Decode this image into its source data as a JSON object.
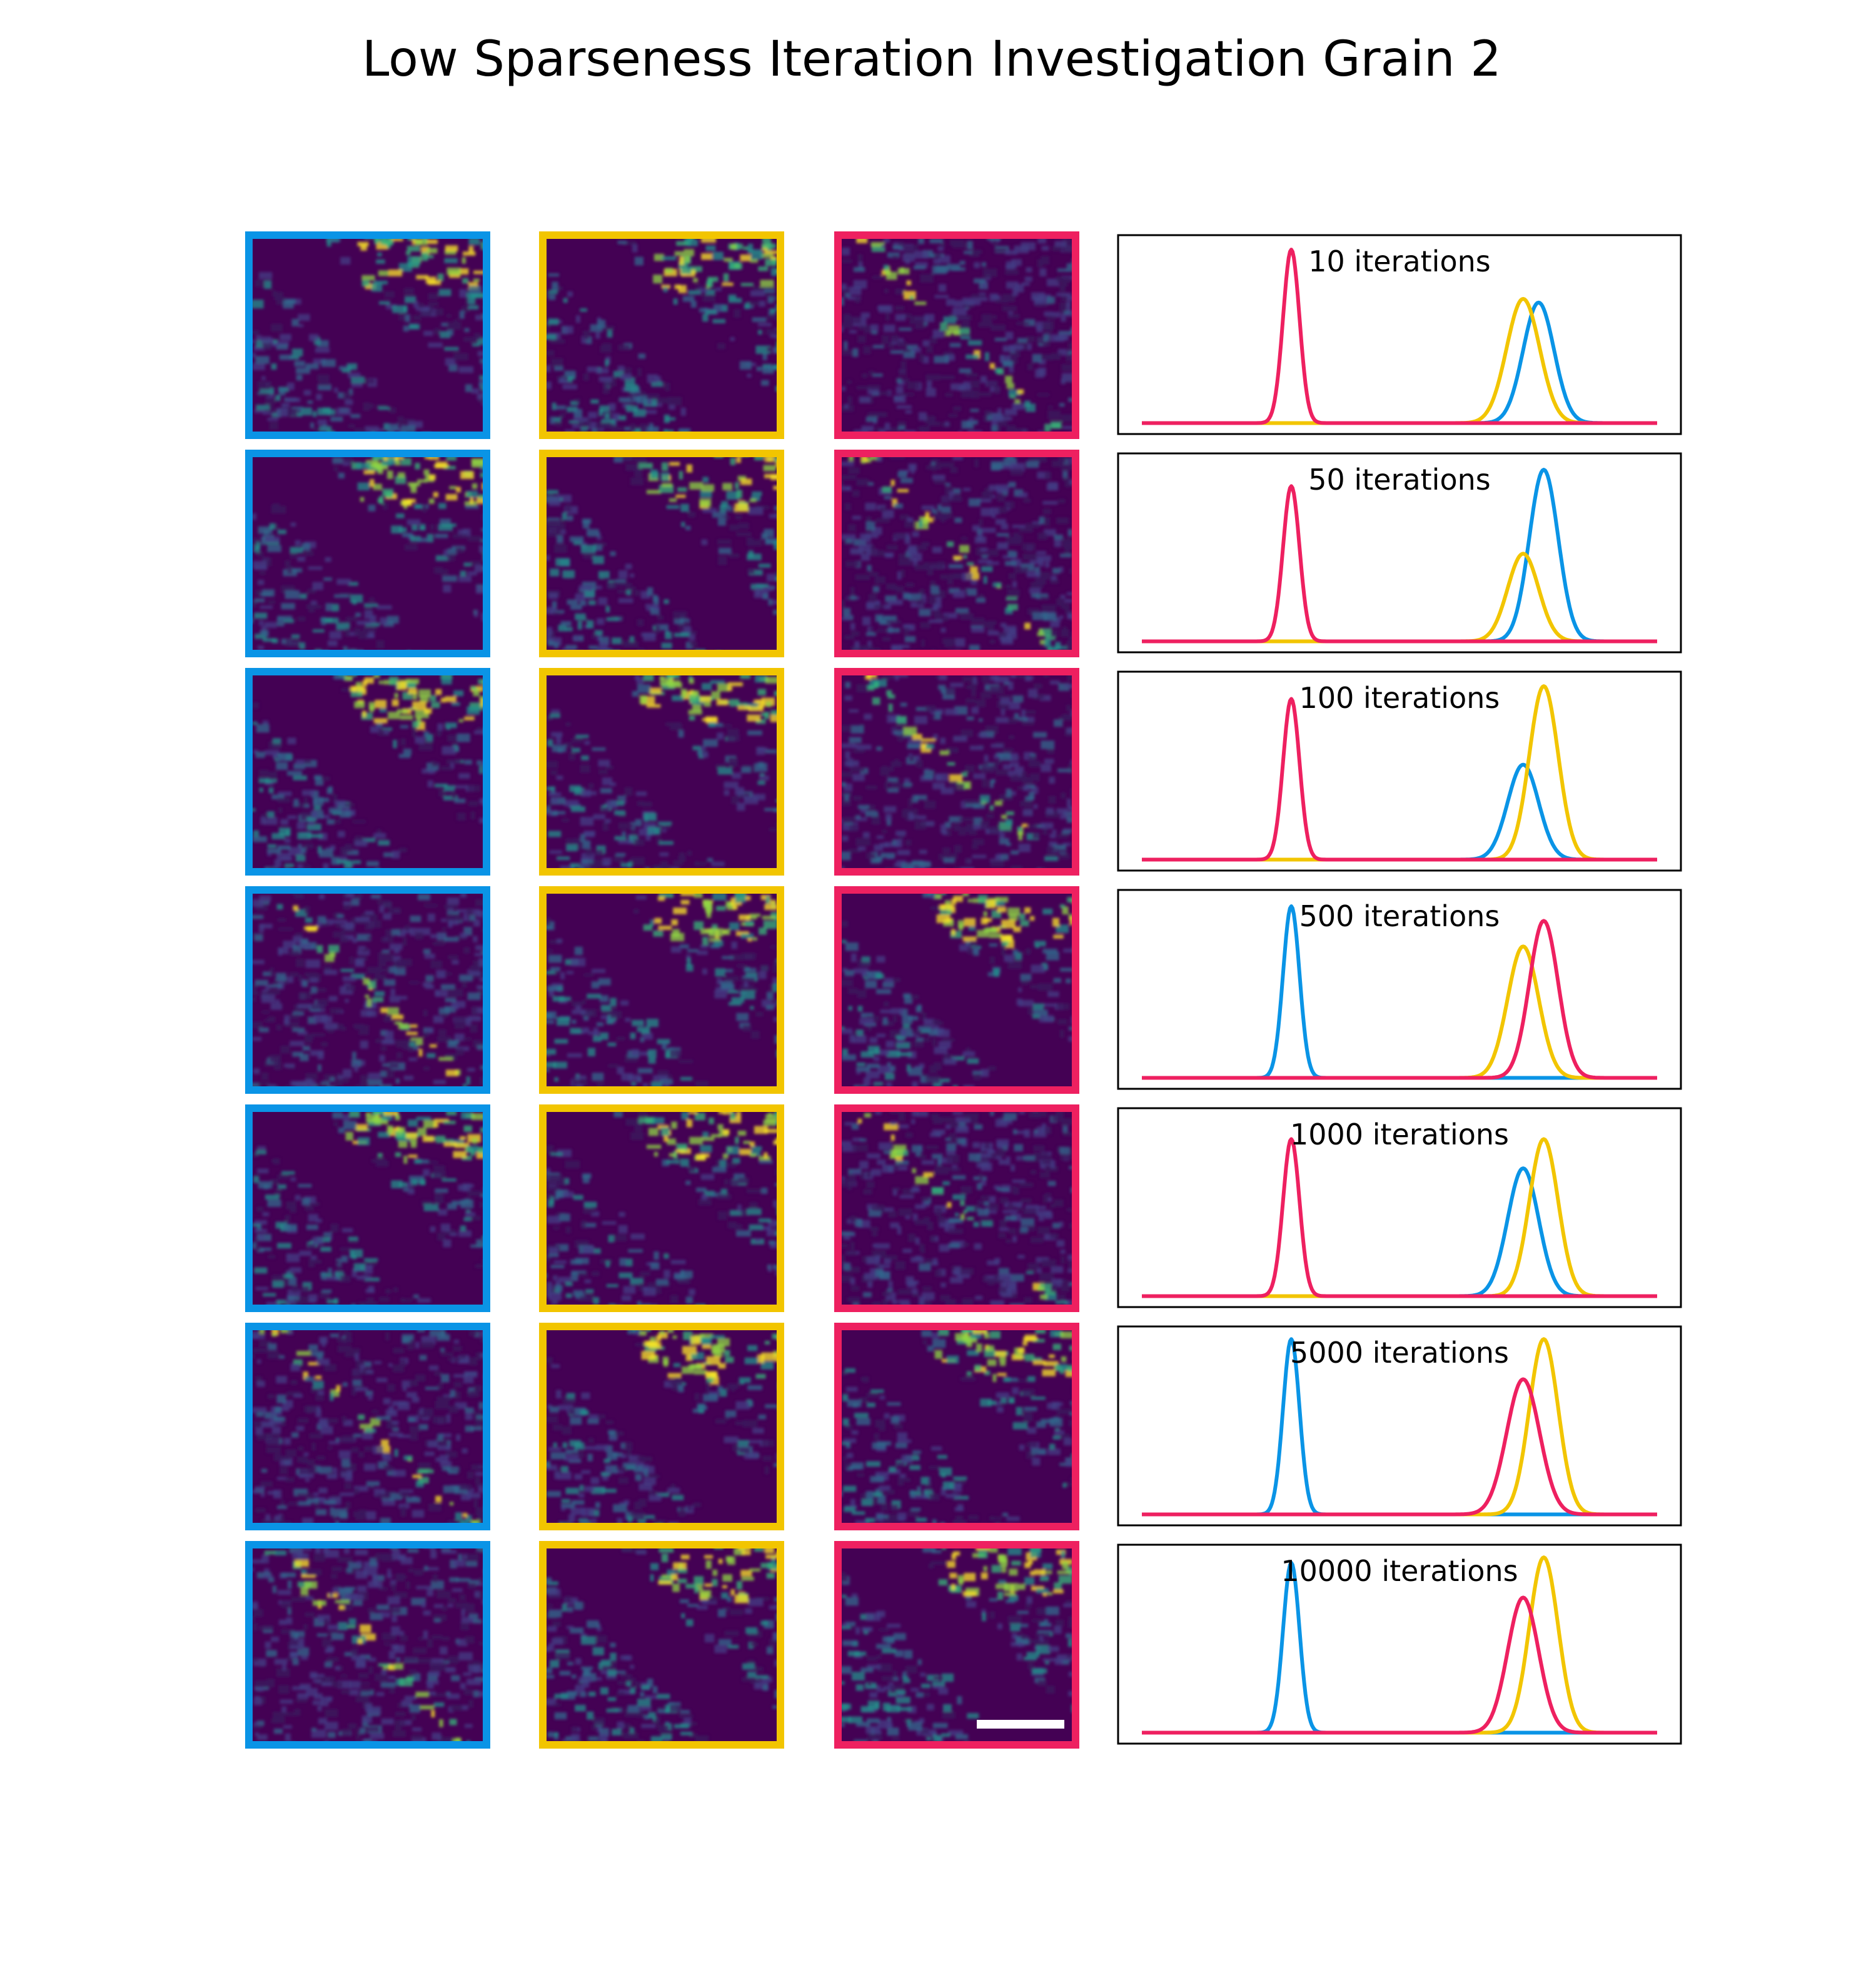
{
  "title": "Low Sparseness Iteration Investigation Grain 2",
  "colors": {
    "blue": "#0a94e6",
    "yellow": "#f2c500",
    "pink": "#ee2060",
    "map_bg": "#440154",
    "scalebar": "#ffffff"
  },
  "columns": [
    {
      "frame_color": "blue"
    },
    {
      "frame_color": "yellow"
    },
    {
      "frame_color": "pink"
    }
  ],
  "chart_data": {
    "type": "line",
    "xlabel": "",
    "ylabel": "",
    "panels": [
      {
        "label": "10 iterations",
        "maps": [
          "grain",
          "grain",
          "boundary"
        ],
        "series": [
          {
            "color": "blue",
            "peaks": [
              [
                0.77,
                0.66,
                0.03
              ]
            ]
          },
          {
            "color": "yellow",
            "peaks": [
              [
                0.74,
                0.68,
                0.032
              ]
            ]
          },
          {
            "color": "pink",
            "peaks": [
              [
                0.29,
                0.95,
                0.016
              ]
            ]
          }
        ]
      },
      {
        "label": "50 iterations",
        "maps": [
          "grain",
          "grain",
          "boundary"
        ],
        "series": [
          {
            "color": "blue",
            "peaks": [
              [
                0.78,
                0.94,
                0.028
              ]
            ]
          },
          {
            "color": "yellow",
            "peaks": [
              [
                0.74,
                0.48,
                0.03
              ]
            ]
          },
          {
            "color": "pink",
            "peaks": [
              [
                0.29,
                0.85,
                0.016
              ]
            ]
          }
        ]
      },
      {
        "label": "100 iterations",
        "maps": [
          "grain",
          "grain",
          "boundary"
        ],
        "series": [
          {
            "color": "blue",
            "peaks": [
              [
                0.74,
                0.52,
                0.03
              ]
            ]
          },
          {
            "color": "yellow",
            "peaks": [
              [
                0.78,
                0.95,
                0.028
              ]
            ]
          },
          {
            "color": "pink",
            "peaks": [
              [
                0.29,
                0.88,
                0.016
              ]
            ]
          }
        ]
      },
      {
        "label": "500 iterations",
        "maps": [
          "boundary",
          "grain",
          "grain"
        ],
        "series": [
          {
            "color": "blue",
            "peaks": [
              [
                0.29,
                0.94,
                0.016
              ]
            ]
          },
          {
            "color": "yellow",
            "peaks": [
              [
                0.74,
                0.72,
                0.03
              ]
            ]
          },
          {
            "color": "pink",
            "peaks": [
              [
                0.78,
                0.86,
                0.028
              ]
            ]
          }
        ]
      },
      {
        "label": "1000 iterations",
        "maps": [
          "grain",
          "grain",
          "boundary"
        ],
        "series": [
          {
            "color": "blue",
            "peaks": [
              [
                0.74,
                0.7,
                0.03
              ]
            ]
          },
          {
            "color": "yellow",
            "peaks": [
              [
                0.78,
                0.86,
                0.028
              ]
            ]
          },
          {
            "color": "pink",
            "peaks": [
              [
                0.29,
                0.86,
                0.016
              ]
            ]
          }
        ]
      },
      {
        "label": "5000 iterations",
        "maps": [
          "boundary",
          "grain",
          "grain"
        ],
        "series": [
          {
            "color": "blue",
            "peaks": [
              [
                0.29,
                0.96,
                0.016
              ]
            ]
          },
          {
            "color": "yellow",
            "peaks": [
              [
                0.78,
                0.96,
                0.028
              ]
            ]
          },
          {
            "color": "pink",
            "peaks": [
              [
                0.74,
                0.74,
                0.032
              ]
            ]
          }
        ]
      },
      {
        "label": "10000 iterations",
        "maps": [
          "boundary",
          "grain",
          "grain"
        ],
        "series": [
          {
            "color": "blue",
            "peaks": [
              [
                0.29,
                0.93,
                0.016
              ]
            ]
          },
          {
            "color": "yellow",
            "peaks": [
              [
                0.78,
                0.96,
                0.028
              ]
            ]
          },
          {
            "color": "pink",
            "peaks": [
              [
                0.74,
                0.74,
                0.03
              ]
            ]
          }
        ]
      }
    ]
  }
}
